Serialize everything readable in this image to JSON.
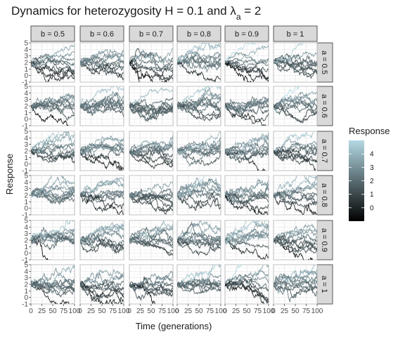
{
  "chart_data": {
    "type": "line",
    "title_prefix": "Dynamics for heterozygosity  H = 0.1  and  λ",
    "title_subscript": "a",
    "title_suffix": " = 2",
    "xlabel": "Time (generations)",
    "ylabel": "Response",
    "xlim": [
      0,
      100
    ],
    "ylim": [
      -1,
      5
    ],
    "x_ticks": [
      "0",
      "25",
      "50",
      "75",
      "100"
    ],
    "y_ticks": [
      "-1",
      "0",
      "1",
      "2",
      "3",
      "4",
      "5"
    ],
    "facet_columns": [
      "b = 0.5",
      "b = 0.6",
      "b = 0.7",
      "b = 0.8",
      "b = 0.9",
      "b = 1"
    ],
    "facet_rows": [
      "a = 0.5",
      "a = 0.6",
      "a = 0.7",
      "a = 0.8",
      "a = 0.9",
      "a = 1"
    ],
    "series_per_panel": 10,
    "series_start_value": 2,
    "steps_per_series": 100,
    "color_scale": {
      "title": "Response",
      "low_color": "#000000",
      "high_color": "#b4d9e4",
      "range": [
        -1,
        5
      ],
      "breaks": [
        "0",
        "1",
        "2",
        "3",
        "4"
      ]
    },
    "grid": true,
    "legend_position": "right"
  }
}
